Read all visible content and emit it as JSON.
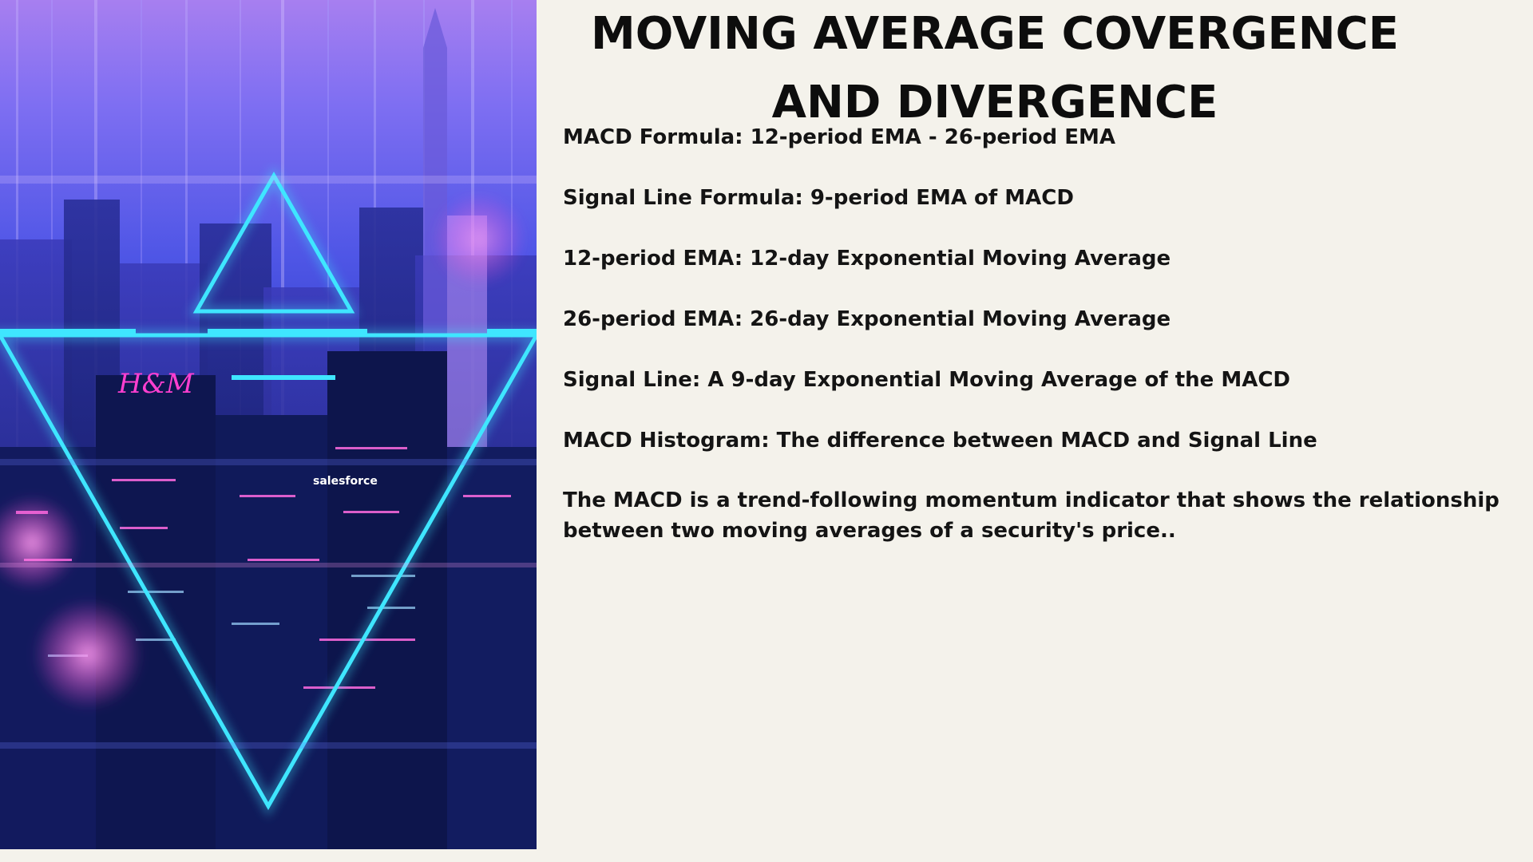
{
  "slide": {
    "title": "MOVING AVERAGE COVERGENCE AND DIVERGENCE",
    "lines": [
      "MACD Formula: 12-period EMA - 26-period EMA",
      "Signal Line Formula: 9-period EMA of MACD",
      "12-period EMA: 12-day Exponential Moving Average",
      "26-period EMA: 26-day Exponential Moving Average",
      "Signal Line: A 9-day Exponential Moving Average of the MACD",
      "MACD Histogram: The difference between MACD and Signal Line",
      "The MACD is a trend-following momentum indicator that shows the relationship between two moving averages of a security's price.."
    ]
  },
  "image": {
    "signs": [
      "H&M",
      "salesforce"
    ],
    "colors": {
      "sky_top": "#a77ff0",
      "sky_mid": "#4f56e6",
      "sky_bottom": "#0f1a5c",
      "neon_cyan": "#3fe6ff",
      "neon_pink": "#ff3fd0"
    }
  }
}
